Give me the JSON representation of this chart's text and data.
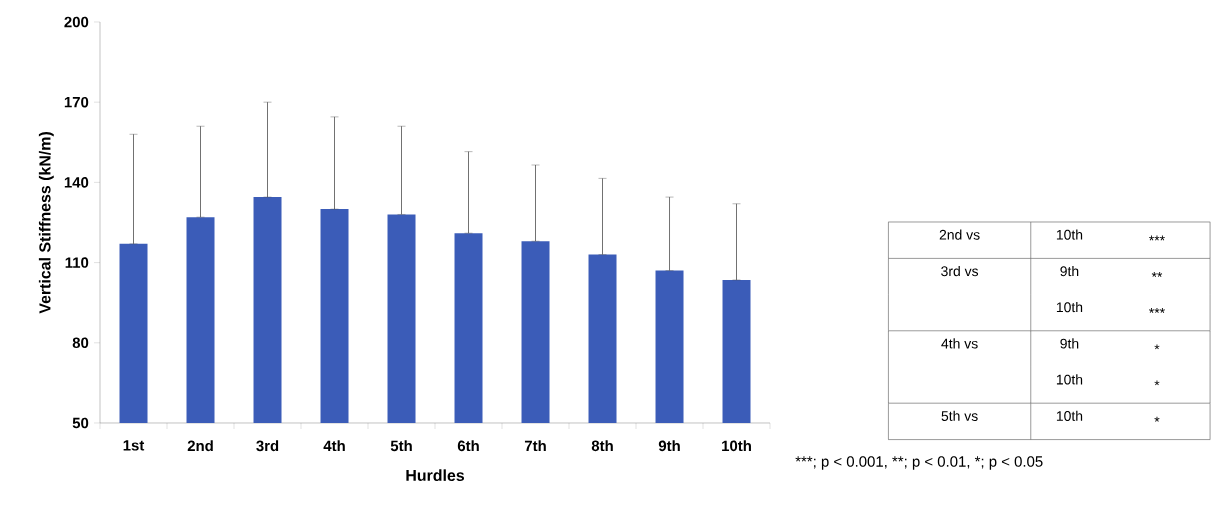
{
  "chart_data": {
    "type": "bar",
    "xlabel": "Hurdles",
    "ylabel": "Vertical Stiffness (kN/m)",
    "categories": [
      "1st",
      "2nd",
      "3rd",
      "4th",
      "5th",
      "6th",
      "7th",
      "8th",
      "9th",
      "10th"
    ],
    "values": [
      117,
      127,
      134.5,
      130,
      128,
      121,
      118,
      113,
      107,
      103.5
    ],
    "errors": [
      [
        117,
        158
      ],
      [
        127,
        161
      ],
      [
        134.5,
        170
      ],
      [
        130,
        164.5
      ],
      [
        128,
        161
      ],
      [
        121,
        151.5
      ],
      [
        118,
        146.5
      ],
      [
        113,
        141.5
      ],
      [
        107,
        134.5
      ],
      [
        103.5,
        132
      ]
    ],
    "color": "#3b5cb8",
    "ylim": [
      50,
      200
    ],
    "yticks": [
      50,
      80,
      110,
      140,
      170,
      200
    ],
    "grid": false,
    "annotations": [
      "2nd vs",
      "10th",
      "***",
      "3rd vs",
      "9th",
      "**",
      "10th",
      "***",
      "4th vs",
      "9th",
      "*",
      "10th",
      "*",
      "5th vs",
      "10th",
      "*",
      "***; p < 0.001,  **; p < 0.01,  *; p < 0.05"
    ]
  }
}
